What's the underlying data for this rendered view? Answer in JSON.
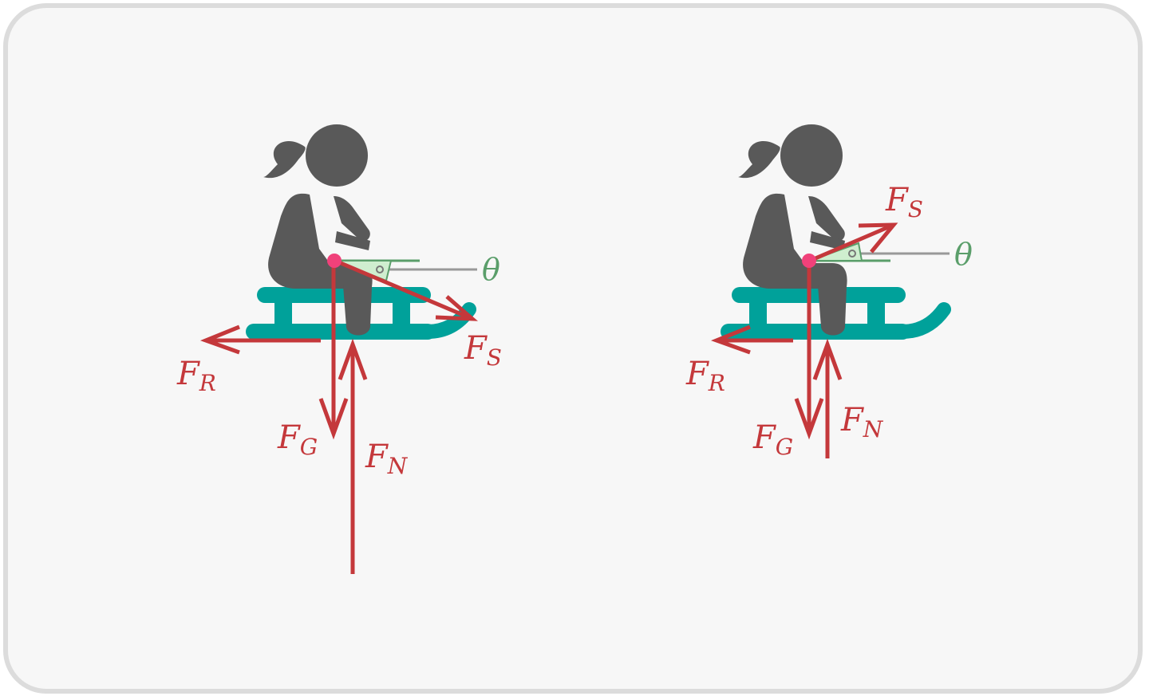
{
  "diagrams": [
    {
      "forces": {
        "fr": {
          "main": "F",
          "sub": "R"
        },
        "fg": {
          "main": "F",
          "sub": "G"
        },
        "fn": {
          "main": "F",
          "sub": "N"
        },
        "fs": {
          "main": "F",
          "sub": "S"
        }
      },
      "angle_label": "θ"
    },
    {
      "forces": {
        "fr": {
          "main": "F",
          "sub": "R"
        },
        "fg": {
          "main": "F",
          "sub": "G"
        },
        "fn": {
          "main": "F",
          "sub": "N"
        },
        "fs": {
          "main": "F",
          "sub": "S"
        }
      },
      "angle_label": "θ"
    }
  ],
  "colors": {
    "force": "#c4383b",
    "figure": "#595959",
    "sled": "#00a19a",
    "angle": "#5a9e6a",
    "reference_line": "#999999",
    "point": "#f0417a",
    "angle_fill": "#cfeecf"
  }
}
